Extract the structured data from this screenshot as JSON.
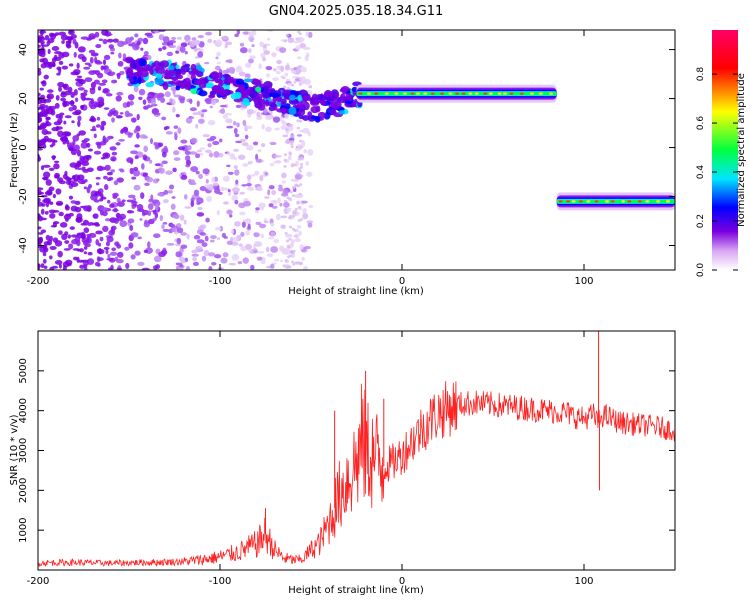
{
  "title": "GN04.2025.035.18.34.G11",
  "chart_data": [
    {
      "type": "heatmap",
      "xlabel": "Height of straight line (km)",
      "ylabel": "Frequency (Hz)",
      "xlim": [
        -200,
        150
      ],
      "ylim": [
        -50,
        48
      ],
      "x_ticks": [
        -200,
        -100,
        0,
        100
      ],
      "y_ticks": [
        -40,
        -20,
        0,
        20,
        40
      ],
      "colorbar": {
        "label": "Normalized spectral amplitude",
        "range": [
          0,
          0.98
        ],
        "ticks": [
          "0.0",
          "0.2",
          "0.4",
          "0.6",
          "0.8"
        ],
        "colors": [
          "#ffffff",
          "#d9a6f2",
          "#7b00e0",
          "#0000ff",
          "#00e5ff",
          "#00ff40",
          "#ffff00",
          "#ff0000",
          "#ff0066"
        ]
      },
      "features": [
        {
          "name": "diffuse noise",
          "x_range": [
            -200,
            -120
          ],
          "freq_range": [
            -50,
            48
          ]
        },
        {
          "name": "curving trace",
          "points": [
            [
              -200,
              32
            ],
            [
              -150,
              31
            ],
            [
              -120,
              29
            ],
            [
              -100,
              25
            ],
            [
              -80,
              22
            ],
            [
              -60,
              18
            ],
            [
              -45,
              16
            ],
            [
              -35,
              18
            ],
            [
              -25,
              21
            ]
          ]
        },
        {
          "name": "stable trace",
          "x_range": [
            -25,
            85
          ],
          "freq": 22
        },
        {
          "name": "negative trace",
          "x_range": [
            85,
            150
          ],
          "freq": -22
        }
      ]
    },
    {
      "type": "line",
      "xlabel": "Height of straight line (km)",
      "ylabel": "SNR (10 * v/v)",
      "xlim": [
        -200,
        150
      ],
      "ylim": [
        0,
        6000
      ],
      "x_ticks": [
        -200,
        -100,
        0,
        100
      ],
      "y_ticks": [
        1000,
        2000,
        3000,
        4000,
        5000
      ],
      "color": "#ff2020",
      "series": [
        {
          "x": [
            -200,
            -180,
            -160,
            -140,
            -120,
            -110,
            -100,
            -90,
            -80,
            -75,
            -70,
            -65,
            -60,
            -55,
            -50,
            -45,
            -40,
            -35,
            -30,
            -25,
            -22,
            -20,
            -15,
            -10,
            -5,
            0,
            5,
            10,
            15,
            20,
            25,
            30,
            40,
            50,
            60,
            70,
            80,
            90,
            95,
            100,
            105,
            108,
            110,
            115,
            120,
            130,
            140,
            150
          ],
          "values": [
            180,
            190,
            170,
            190,
            210,
            260,
            330,
            450,
            650,
            900,
            500,
            300,
            250,
            260,
            500,
            700,
            1200,
            1800,
            2300,
            2700,
            3200,
            3000,
            2800,
            2600,
            2700,
            2900,
            3200,
            3500,
            3750,
            3950,
            4050,
            4150,
            4200,
            4150,
            4100,
            4050,
            4000,
            3950,
            3850,
            3800,
            3900,
            3700,
            3900,
            3800,
            3700,
            3650,
            3600,
            3500
          ]
        }
      ],
      "spikes": [
        {
          "x": -75,
          "value": 1550
        },
        {
          "x": -37,
          "value": 4000
        },
        {
          "x": -20,
          "value": 5000
        },
        {
          "x": -10,
          "value": 4300
        },
        {
          "x": 108,
          "value": 6000
        },
        {
          "x": 108.5,
          "value": 2000
        }
      ]
    }
  ]
}
